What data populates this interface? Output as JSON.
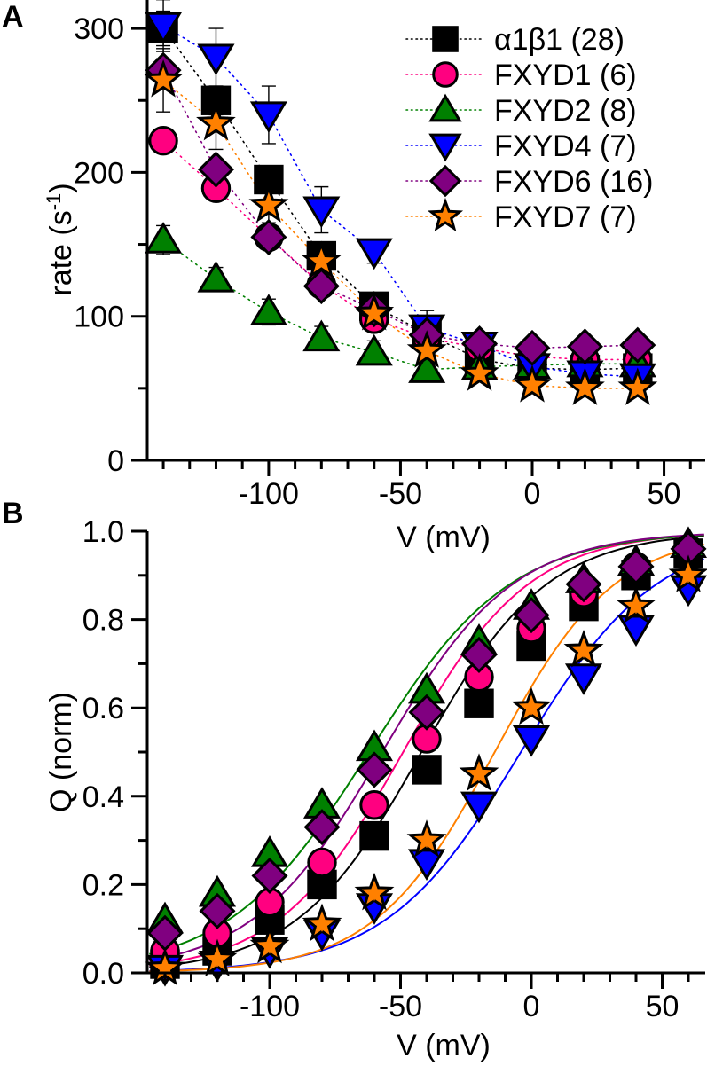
{
  "chart_data": [
    {
      "panel": "A",
      "type": "scatter",
      "title": "",
      "xlabel": "V (mV)",
      "ylabel": "rate (s-1)",
      "ylabel_main": "rate (s",
      "ylabel_sup": "-1",
      "ylabel_close": ")",
      "xlim": [
        -146,
        66
      ],
      "ylim": [
        0,
        320
      ],
      "xticks": [
        -100,
        -50,
        0,
        50
      ],
      "xtick_labels": [
        "-100",
        "-50",
        "0",
        "50"
      ],
      "yticks": [
        0,
        100,
        200,
        300
      ],
      "ytick_labels": [
        "0",
        "100",
        "200",
        "300"
      ],
      "connector": "dotted",
      "legend_position": "top-right",
      "x": [
        -140,
        -120,
        -100,
        -80,
        -60,
        -40,
        -20,
        0,
        20,
        40
      ],
      "series": [
        {
          "name": "α1β1 (28)",
          "color": "#000000",
          "marker": "square",
          "values": [
            300,
            250,
            195,
            142,
            107,
            88,
            70,
            64,
            63,
            64
          ],
          "errors": [
            12,
            10,
            8,
            6,
            5,
            4,
            3,
            3,
            3,
            3
          ]
        },
        {
          "name": "FXYD1 (6)",
          "color": "#ff0080",
          "marker": "circle",
          "values": [
            222,
            189,
            155,
            122,
            98,
            85,
            78,
            72,
            70,
            70
          ],
          "errors": [
            4,
            5,
            4,
            4,
            4,
            3,
            3,
            3,
            3,
            3
          ]
        },
        {
          "name": "FXYD2 (8)",
          "color": "#008000",
          "marker": "triangle-up",
          "values": [
            153,
            126,
            103,
            85,
            75,
            63,
            65,
            66,
            67,
            67
          ],
          "errors": [
            10,
            8,
            9,
            8,
            8,
            8,
            5,
            4,
            4,
            4
          ]
        },
        {
          "name": "FXYD4 (7)",
          "color": "#0000ff",
          "marker": "triangle-down",
          "values": [
            302,
            280,
            240,
            174,
            145,
            92,
            80,
            65,
            60,
            58
          ],
          "errors": [
            18,
            20,
            20,
            16,
            8,
            12,
            6,
            5,
            4,
            4
          ]
        },
        {
          "name": "FXYD6 (16)",
          "color": "#800080",
          "marker": "diamond",
          "values": [
            271,
            202,
            155,
            121,
            105,
            87,
            81,
            78,
            79,
            80
          ],
          "errors": [
            8,
            6,
            5,
            4,
            4,
            3,
            3,
            3,
            3,
            3
          ]
        },
        {
          "name": "FXYD7 (7)",
          "color": "#ff8000",
          "marker": "star",
          "values": [
            264,
            234,
            177,
            138,
            102,
            76,
            60,
            52,
            50,
            50
          ],
          "errors": [
            22,
            18,
            12,
            10,
            8,
            6,
            5,
            5,
            5,
            5
          ]
        }
      ]
    },
    {
      "panel": "B",
      "type": "scatter",
      "title": "",
      "xlabel": "V (mV)",
      "ylabel": "Q (norm)",
      "xlim": [
        -146,
        66
      ],
      "ylim": [
        0,
        1.0
      ],
      "xticks": [
        -100,
        -50,
        0,
        50
      ],
      "xtick_labels": [
        "-100",
        "-50",
        "0",
        "50"
      ],
      "yticks": [
        0.0,
        0.2,
        0.4,
        0.6,
        0.8,
        1.0
      ],
      "ytick_labels": [
        "0.0",
        "0.2",
        "0.4",
        "0.6",
        "0.8",
        "1.0"
      ],
      "connector": "boltzmann-fit",
      "x": [
        -140,
        -120,
        -100,
        -80,
        -60,
        -40,
        -20,
        0,
        20,
        40,
        60
      ],
      "series": [
        {
          "name": "α1β1 (28)",
          "color": "#000000",
          "marker": "square",
          "values": [
            0.02,
            0.05,
            0.12,
            0.2,
            0.31,
            0.46,
            0.61,
            0.74,
            0.83,
            0.9,
            0.95
          ],
          "fit": {
            "vhalf": -42,
            "slope": 24
          }
        },
        {
          "name": "FXYD1 (6)",
          "color": "#ff0080",
          "marker": "circle",
          "values": [
            0.05,
            0.09,
            0.16,
            0.25,
            0.38,
            0.53,
            0.67,
            0.78,
            0.86,
            0.92,
            0.96
          ],
          "fit": {
            "vhalf": -49,
            "slope": 24
          }
        },
        {
          "name": "FXYD2 (8)",
          "color": "#008000",
          "marker": "triangle-up",
          "values": [
            0.12,
            0.18,
            0.27,
            0.38,
            0.51,
            0.64,
            0.75,
            0.83,
            0.89,
            0.93,
            0.97
          ],
          "fit": {
            "vhalf": -62,
            "slope": 27
          }
        },
        {
          "name": "FXYD4 (7)",
          "color": "#0000ff",
          "marker": "triangle-down",
          "values": [
            0.01,
            0.02,
            0.05,
            0.09,
            0.15,
            0.25,
            0.38,
            0.53,
            0.67,
            0.78,
            0.87
          ],
          "fit": {
            "vhalf": -4,
            "slope": 26
          }
        },
        {
          "name": "FXYD6 (16)",
          "color": "#800080",
          "marker": "diamond",
          "values": [
            0.09,
            0.14,
            0.22,
            0.33,
            0.46,
            0.59,
            0.72,
            0.81,
            0.88,
            0.92,
            0.96
          ],
          "fit": {
            "vhalf": -57,
            "slope": 25
          }
        },
        {
          "name": "FXYD7 (7)",
          "color": "#ff8000",
          "marker": "star",
          "values": [
            0.01,
            0.03,
            0.06,
            0.11,
            0.18,
            0.3,
            0.45,
            0.6,
            0.73,
            0.83,
            0.9
          ],
          "fit": {
            "vhalf": -14,
            "slope": 23
          }
        }
      ]
    }
  ],
  "labels": {
    "panel_a": "A",
    "panel_b": "B"
  }
}
